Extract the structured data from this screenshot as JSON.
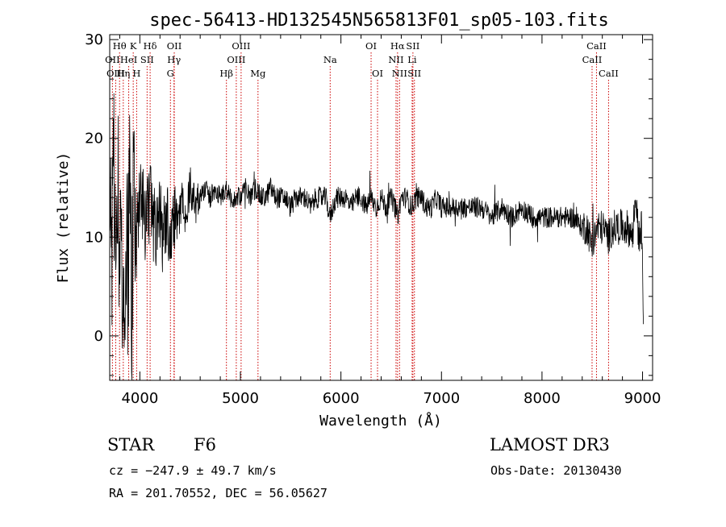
{
  "chart_data": {
    "type": "line",
    "title": "spec-56413-HD132545N565813F01_sp05-103.fits",
    "xlabel": "Wavelength (Å)",
    "ylabel": "Flux (relative)",
    "xlim": [
      3700,
      9100
    ],
    "ylim": [
      -4.5,
      30.5
    ],
    "xticks": [
      4000,
      5000,
      6000,
      7000,
      8000,
      9000
    ],
    "yticks": [
      0,
      10,
      20,
      30
    ],
    "grid": false,
    "series": [
      {
        "name": "spectrum",
        "color": "#000000",
        "x": [
          3700,
          3720,
          3740,
          3760,
          3780,
          3800,
          3820,
          3840,
          3860,
          3880,
          3900,
          3920,
          3940,
          3960,
          3980,
          4000,
          4030,
          4060,
          4100,
          4130,
          4160,
          4200,
          4230,
          4260,
          4300,
          4340,
          4380,
          4420,
          4460,
          4500,
          4550,
          4600,
          4650,
          4700,
          4750,
          4800,
          4850,
          4900,
          4950,
          5000,
          5050,
          5100,
          5150,
          5200,
          5250,
          5300,
          5350,
          5400,
          5450,
          5500,
          5550,
          5600,
          5650,
          5700,
          5750,
          5800,
          5850,
          5890,
          5950,
          6000,
          6050,
          6100,
          6150,
          6200,
          6250,
          6300,
          6350,
          6400,
          6450,
          6500,
          6540,
          6563,
          6600,
          6650,
          6700,
          6750,
          6800,
          6850,
          6900,
          6950,
          7000,
          7100,
          7200,
          7300,
          7400,
          7500,
          7600,
          7700,
          7800,
          7900,
          8000,
          8100,
          8200,
          8300,
          8400,
          8450,
          8498,
          8550,
          8600,
          8662,
          8700,
          8750,
          8800,
          8850,
          8900,
          8930,
          8960,
          8990,
          9010
        ],
        "values": [
          12,
          8,
          18,
          2,
          16,
          4,
          10,
          -2,
          12,
          6,
          14,
          3,
          16,
          9,
          11,
          15,
          13,
          11,
          14,
          12,
          10,
          13,
          9,
          12,
          11,
          13,
          11,
          14,
          12,
          15,
          13,
          14,
          15,
          14,
          15,
          14,
          15,
          14,
          14,
          14,
          15,
          14,
          15,
          14,
          14,
          15,
          14,
          14,
          14,
          13,
          14,
          14,
          14,
          13,
          14,
          14,
          14,
          12,
          14,
          14,
          14,
          13,
          14,
          14,
          13,
          14,
          13,
          14,
          13,
          14,
          13,
          12,
          14,
          14,
          13,
          14,
          14,
          13,
          13,
          14,
          13,
          13,
          13,
          13,
          13,
          12,
          13,
          12,
          13,
          12,
          12,
          12,
          12,
          12,
          11,
          11,
          9,
          11,
          11,
          10,
          11,
          11,
          11,
          11,
          10,
          14,
          10,
          11,
          2
        ]
      }
    ],
    "lines": [
      {
        "label": "Hθ",
        "x": 3798,
        "row": 0
      },
      {
        "label": "K",
        "x": 3934,
        "row": 0
      },
      {
        "label": "Hδ",
        "x": 4102,
        "row": 0
      },
      {
        "label": "OII",
        "x": 4342,
        "row": 0
      },
      {
        "label": "OIII",
        "x": 5007,
        "row": 0
      },
      {
        "label": "OI",
        "x": 6300,
        "row": 0
      },
      {
        "label": "Hα",
        "x": 6563,
        "row": 0
      },
      {
        "label": "SII",
        "x": 6716,
        "row": 0
      },
      {
        "label": "CaII",
        "x": 8542,
        "row": 0
      },
      {
        "label": "OII",
        "x": 3727,
        "row": 1
      },
      {
        "label": "HeI",
        "x": 3889,
        "row": 1
      },
      {
        "label": "SII",
        "x": 4072,
        "row": 1
      },
      {
        "label": "Hγ",
        "x": 4340,
        "row": 1
      },
      {
        "label": "OIII",
        "x": 4959,
        "row": 1
      },
      {
        "label": "Na",
        "x": 5893,
        "row": 1
      },
      {
        "label": "NII",
        "x": 6548,
        "row": 1
      },
      {
        "label": "Li",
        "x": 6708,
        "row": 1
      },
      {
        "label": "CaII",
        "x": 8498,
        "row": 1
      },
      {
        "label": "OIII",
        "x": 3760,
        "row": 2
      },
      {
        "label": "Hη",
        "x": 3835,
        "row": 2
      },
      {
        "label": "H",
        "x": 3968,
        "row": 2
      },
      {
        "label": "G",
        "x": 4304,
        "row": 2
      },
      {
        "label": "Hβ",
        "x": 4861,
        "row": 2
      },
      {
        "label": "Mg",
        "x": 5175,
        "row": 2
      },
      {
        "label": "OI",
        "x": 6364,
        "row": 2
      },
      {
        "label": "NII",
        "x": 6583,
        "row": 2
      },
      {
        "label": "SII",
        "x": 6731,
        "row": 2
      },
      {
        "label": "CaII",
        "x": 8662,
        "row": 2
      }
    ],
    "line_color": "#cc0000"
  },
  "info": {
    "object_class": "STAR",
    "subclass": "F6",
    "redshift": "cz = −247.9 ± 49.7 km/s",
    "coords": "RA = 201.70552, DEC =  56.05627",
    "survey": "LAMOST DR3",
    "obs_date": "Obs-Date: 20130430"
  }
}
